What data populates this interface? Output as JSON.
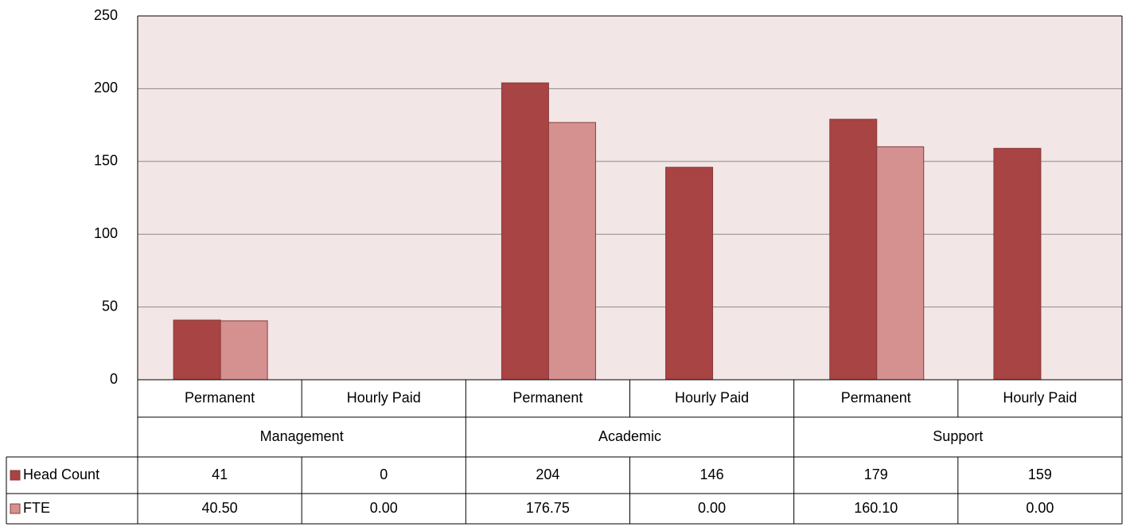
{
  "chart_data": {
    "type": "bar",
    "categories": [
      "Permanent",
      "Hourly Paid",
      "Permanent",
      "Hourly Paid",
      "Permanent",
      "Hourly Paid"
    ],
    "groups": [
      "Management",
      "Academic",
      "Support"
    ],
    "series": [
      {
        "name": "Head Count",
        "color": "#a84444",
        "values": [
          41,
          0,
          204,
          146,
          179,
          159
        ]
      },
      {
        "name": "FTE",
        "color": "#d49190",
        "values": [
          40.5,
          0,
          176.75,
          0,
          160.1,
          0
        ],
        "value_labels": [
          "40.50",
          "0.00",
          "176.75",
          "0.00",
          "160.10",
          "0.00"
        ]
      }
    ],
    "ylim": [
      0,
      250
    ],
    "yticks": [
      0,
      50,
      100,
      150,
      200,
      250
    ],
    "grid": true,
    "plot_background": "#f2e6e6"
  }
}
